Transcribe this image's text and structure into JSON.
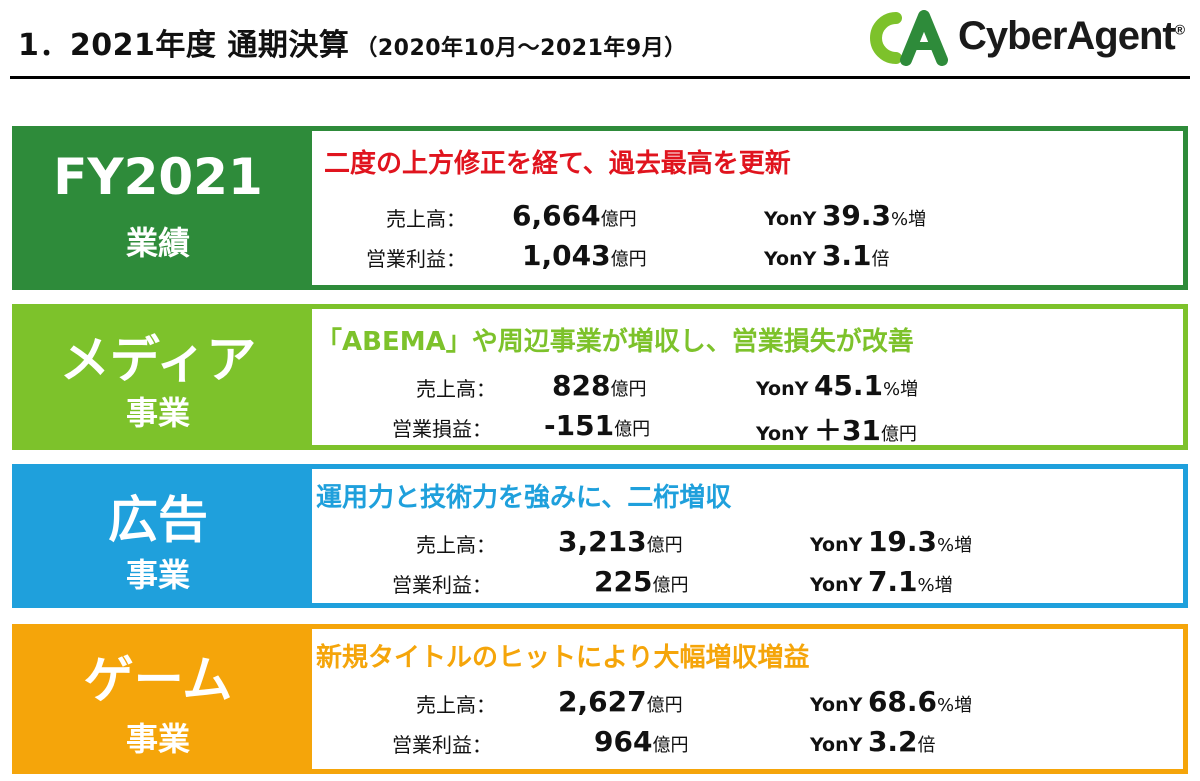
{
  "header": {
    "title": "1．2021年度 通期決算",
    "period": "（2020年10月～2021年9月）",
    "logo_text": "CyberAgent",
    "logo_mark": "®"
  },
  "colors": {
    "fy": "#2e8b3a",
    "media": "#7dc22b",
    "ad": "#1fa0dc",
    "game": "#f5a50a",
    "headline_red": "#e0141e"
  },
  "sections": [
    {
      "label_main": "FY2021",
      "label_sub": "業績",
      "headline": "二度の上方修正を経て、過去最高を更新",
      "rows": [
        {
          "label": "売上高：",
          "value": "6,664",
          "unit": "億円",
          "yoy_label": "YonY",
          "yoy_value": "39.3",
          "yoy_unit": "%増"
        },
        {
          "label": "営業利益：",
          "value": "1,043",
          "unit": "億円",
          "yoy_label": "YonY",
          "yoy_value": "3.1",
          "yoy_unit": "倍"
        }
      ]
    },
    {
      "label_main": "メディア",
      "label_sub": "事業",
      "headline": "「ABEMA」や周辺事業が増収し、営業損失が改善",
      "rows": [
        {
          "label": "売上高：",
          "value": "828",
          "unit": "億円",
          "yoy_label": "YonY",
          "yoy_value": "45.1",
          "yoy_unit": "%増"
        },
        {
          "label": "営業損益：",
          "value": "-151",
          "unit": "億円",
          "yoy_label": "YonY",
          "yoy_value": "＋31",
          "yoy_unit": "億円"
        }
      ]
    },
    {
      "label_main": "広告",
      "label_sub": "事業",
      "headline": "運用力と技術力を強みに、二桁増収",
      "rows": [
        {
          "label": "売上高：",
          "value": "3,213",
          "unit": "億円",
          "yoy_label": "YonY",
          "yoy_value": "19.3",
          "yoy_unit": "%増"
        },
        {
          "label": "営業利益：",
          "value": "225",
          "unit": "億円",
          "yoy_label": "YonY",
          "yoy_value": "7.1",
          "yoy_unit": "%増"
        }
      ]
    },
    {
      "label_main": "ゲーム",
      "label_sub": "事業",
      "headline": "新規タイトルのヒットにより大幅増収増益",
      "rows": [
        {
          "label": "売上高：",
          "value": "2,627",
          "unit": "億円",
          "yoy_label": "YonY",
          "yoy_value": "68.6",
          "yoy_unit": "%増"
        },
        {
          "label": "営業利益：",
          "value": "964",
          "unit": "億円",
          "yoy_label": "YonY",
          "yoy_value": "3.2",
          "yoy_unit": "倍"
        }
      ]
    }
  ]
}
